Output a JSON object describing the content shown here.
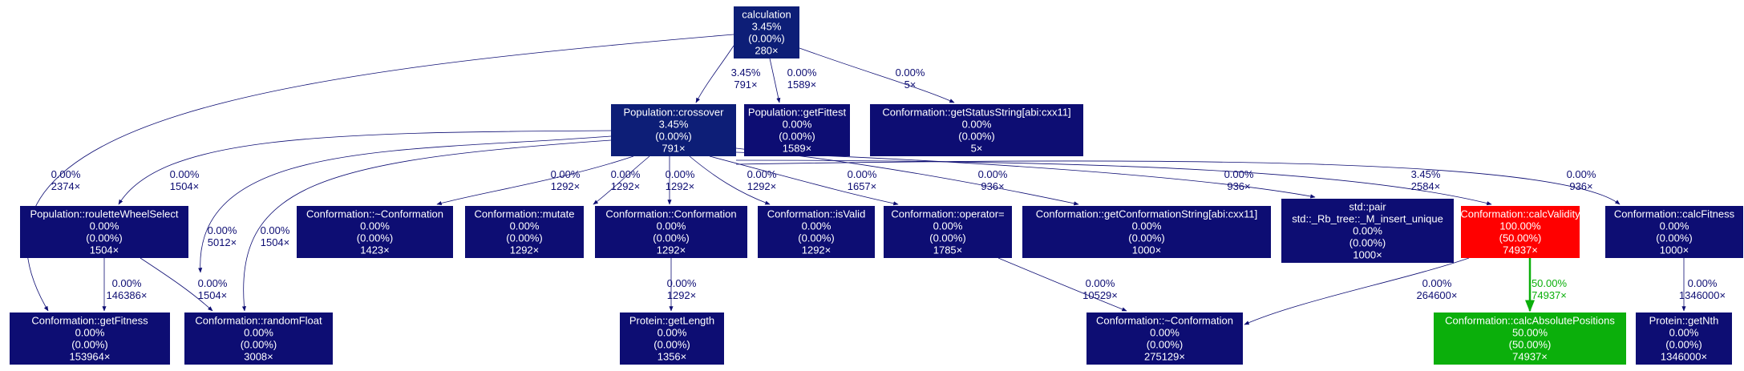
{
  "colors": {
    "node_default": "#0d0d73",
    "node_hot": "#ff0000",
    "node_green": "#0baf0b",
    "edge_default": "#0d0d73",
    "edge_green": "#0baf0b",
    "text_light": "#ffffff"
  },
  "nodes": [
    {
      "id": "calculation",
      "lines": [
        "calculation",
        "3.45%",
        "(0.00%)",
        "280×"
      ],
      "color": "#0d1e77"
    },
    {
      "id": "crossover",
      "lines": [
        "Population::crossover",
        "3.45%",
        "(0.00%)",
        "791×"
      ],
      "color": "#0d1e77"
    },
    {
      "id": "getFittest",
      "lines": [
        "Population::getFittest",
        "0.00%",
        "(0.00%)",
        "1589×"
      ],
      "color": "#0d0d73"
    },
    {
      "id": "getStatusString",
      "lines": [
        "Conformation::getStatusString[abi:cxx11]",
        "0.00%",
        "(0.00%)",
        "5×"
      ],
      "color": "#0d0d73"
    },
    {
      "id": "rouletteWheelSelect",
      "lines": [
        "Population::rouletteWheelSelect",
        "0.00%",
        "(0.00%)",
        "1504×"
      ],
      "color": "#0d0d73"
    },
    {
      "id": "destructorA",
      "lines": [
        "Conformation::~Conformation",
        "0.00%",
        "(0.00%)",
        "1423×"
      ],
      "color": "#0d0d73"
    },
    {
      "id": "mutate",
      "lines": [
        "Conformation::mutate",
        "0.00%",
        "(0.00%)",
        "1292×"
      ],
      "color": "#0d0d73"
    },
    {
      "id": "constructor",
      "lines": [
        "Conformation::Conformation",
        "0.00%",
        "(0.00%)",
        "1292×"
      ],
      "color": "#0d0d73"
    },
    {
      "id": "isValid",
      "lines": [
        "Conformation::isValid",
        "0.00%",
        "(0.00%)",
        "1292×"
      ],
      "color": "#0d0d73"
    },
    {
      "id": "operatorEq",
      "lines": [
        "Conformation::operator=",
        "0.00%",
        "(0.00%)",
        "1785×"
      ],
      "color": "#0d0d73"
    },
    {
      "id": "getConformationString",
      "lines": [
        "Conformation::getConformationString[abi:cxx11]",
        "0.00%",
        "(0.00%)",
        "1000×"
      ],
      "color": "#0d0d73"
    },
    {
      "id": "rbtree",
      "lines": [
        "std::pair",
        "std::_Rb_tree::_M_insert_unique",
        "0.00%",
        "(0.00%)",
        "1000×"
      ],
      "color": "#0d0d73"
    },
    {
      "id": "calcValidity",
      "lines": [
        "Conformation::calcValidity",
        "100.00%",
        "(50.00%)",
        "74937×"
      ],
      "color": "#ff0000"
    },
    {
      "id": "calcFitness",
      "lines": [
        "Conformation::calcFitness",
        "0.00%",
        "(0.00%)",
        "1000×"
      ],
      "color": "#0d0d73"
    },
    {
      "id": "getFitness",
      "lines": [
        "Conformation::getFitness",
        "0.00%",
        "(0.00%)",
        "153964×"
      ],
      "color": "#0d0d73"
    },
    {
      "id": "randomFloat",
      "lines": [
        "Conformation::randomFloat",
        "0.00%",
        "(0.00%)",
        "3008×"
      ],
      "color": "#0d0d73"
    },
    {
      "id": "getLength",
      "lines": [
        "Protein::getLength",
        "0.00%",
        "(0.00%)",
        "1356×"
      ],
      "color": "#0d0d73"
    },
    {
      "id": "destructorB",
      "lines": [
        "Conformation::~Conformation",
        "0.00%",
        "(0.00%)",
        "275129×"
      ],
      "color": "#0d0d73"
    },
    {
      "id": "calcAbsolutePositions",
      "lines": [
        "Conformation::calcAbsolutePositions",
        "50.00%",
        "(50.00%)",
        "74937×"
      ],
      "color": "#0baf0b"
    },
    {
      "id": "getNth",
      "lines": [
        "Protein::getNth",
        "0.00%",
        "(0.00%)",
        "1346000×"
      ],
      "color": "#0d0d73"
    }
  ],
  "edges": [
    {
      "from": "calculation",
      "to": "crossover",
      "lines": [
        "3.45%",
        "791×"
      ]
    },
    {
      "from": "calculation",
      "to": "getFittest",
      "lines": [
        "0.00%",
        "1589×"
      ]
    },
    {
      "from": "calculation",
      "to": "getStatusString",
      "lines": [
        "0.00%",
        "5×"
      ]
    },
    {
      "from": "calculation",
      "to": "getFitness",
      "lines": [
        "0.00%",
        "2374×"
      ]
    },
    {
      "from": "crossover",
      "to": "rouletteWheelSelect",
      "lines": [
        "0.00%",
        "1504×"
      ]
    },
    {
      "from": "crossover",
      "to": "getFitness",
      "lines": [
        "0.00%",
        "5012×"
      ]
    },
    {
      "from": "crossover",
      "to": "randomFloat",
      "lines": [
        "0.00%",
        "1504×"
      ]
    },
    {
      "from": "crossover",
      "to": "destructorA",
      "lines": [
        "0.00%",
        "1292×"
      ]
    },
    {
      "from": "crossover",
      "to": "mutate",
      "lines": [
        "0.00%",
        "1292×"
      ]
    },
    {
      "from": "crossover",
      "to": "constructor",
      "lines": [
        "0.00%",
        "1292×"
      ]
    },
    {
      "from": "crossover",
      "to": "isValid",
      "lines": [
        "0.00%",
        "1292×"
      ]
    },
    {
      "from": "crossover",
      "to": "operatorEq",
      "lines": [
        "0.00%",
        "1657×"
      ]
    },
    {
      "from": "crossover",
      "to": "getConformationString",
      "lines": [
        "0.00%",
        "936×"
      ]
    },
    {
      "from": "crossover",
      "to": "rbtree",
      "lines": [
        "0.00%",
        "936×"
      ]
    },
    {
      "from": "crossover",
      "to": "calcValidity",
      "lines": [
        "3.45%",
        "2584×"
      ]
    },
    {
      "from": "crossover",
      "to": "calcFitness",
      "lines": [
        "0.00%",
        "936×"
      ]
    },
    {
      "from": "rouletteWheelSelect",
      "to": "getFitness",
      "lines": [
        "0.00%",
        "146386×"
      ]
    },
    {
      "from": "rouletteWheelSelect",
      "to": "randomFloat",
      "lines": [
        "0.00%",
        "1504×"
      ]
    },
    {
      "from": "constructor",
      "to": "getLength",
      "lines": [
        "0.00%",
        "1292×"
      ]
    },
    {
      "from": "operatorEq",
      "to": "destructorB",
      "lines": [
        "0.00%",
        "10529×"
      ]
    },
    {
      "from": "calcValidity",
      "to": "destructorB",
      "lines": [
        "0.00%",
        "264600×"
      ]
    },
    {
      "from": "calcValidity",
      "to": "calcAbsolutePositions",
      "lines": [
        "50.00%",
        "74937×"
      ],
      "color": "#0baf0b"
    },
    {
      "from": "calcFitness",
      "to": "getNth",
      "lines": [
        "0.00%",
        "1346000×"
      ]
    }
  ]
}
